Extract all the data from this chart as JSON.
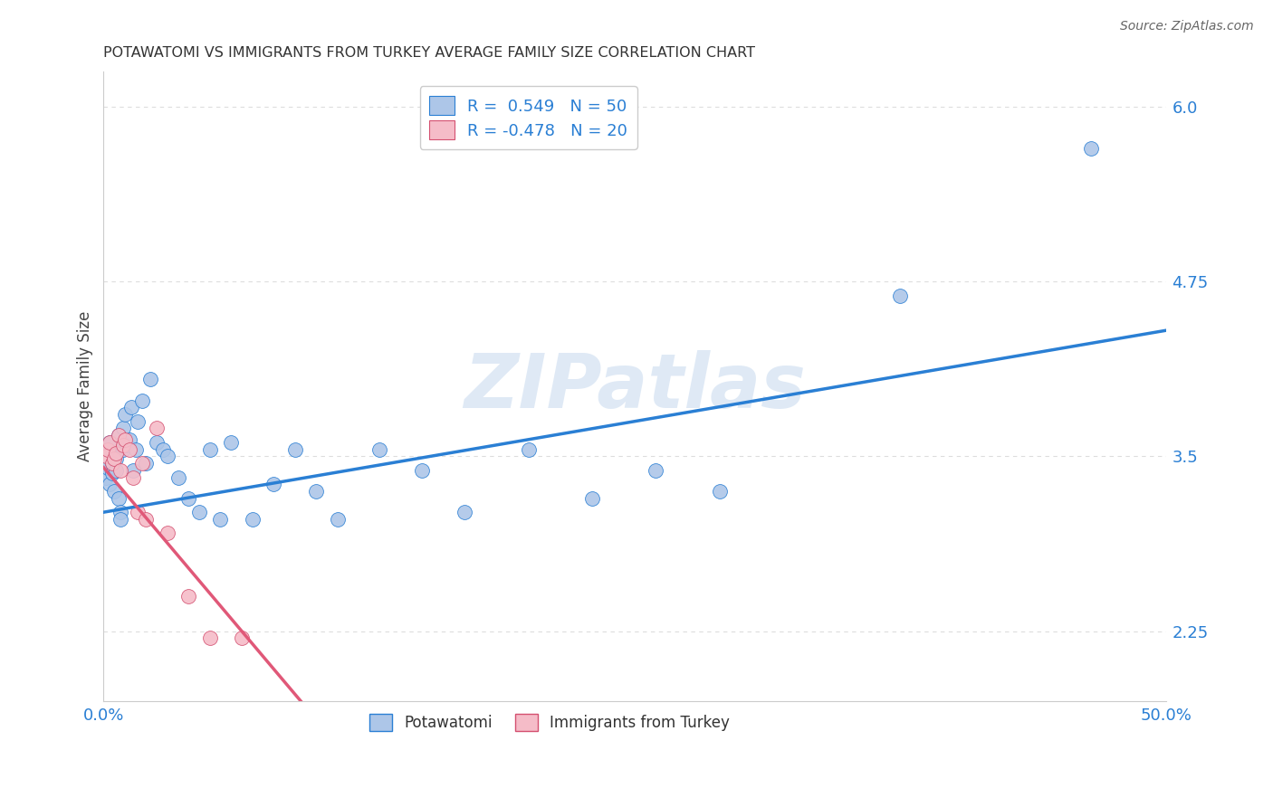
{
  "title": "POTAWATOMI VS IMMIGRANTS FROM TURKEY AVERAGE FAMILY SIZE CORRELATION CHART",
  "source": "Source: ZipAtlas.com",
  "ylabel": "Average Family Size",
  "xlim": [
    0.0,
    0.5
  ],
  "ylim": [
    1.75,
    6.25
  ],
  "yticks": [
    2.25,
    3.5,
    4.75,
    6.0
  ],
  "xtick_positions": [
    0.0,
    0.1,
    0.2,
    0.3,
    0.4,
    0.5
  ],
  "xtick_labels": [
    "0.0%",
    "",
    "",
    "",
    "",
    "50.0%"
  ],
  "legend1_label": "R =  0.549   N = 50",
  "legend2_label": "R = -0.478   N = 20",
  "blue_fill": "#adc6e8",
  "blue_edge": "#2a7fd4",
  "pink_fill": "#f5bcc8",
  "pink_edge": "#d45070",
  "blue_line": "#2a7fd4",
  "pink_line": "#e05878",
  "legend_text_color": "#2a7fd4",
  "title_color": "#333333",
  "grid_color": "#dddddd",
  "watermark": "ZIPatlas",
  "blue_x": [
    0.001,
    0.002,
    0.002,
    0.003,
    0.003,
    0.004,
    0.004,
    0.005,
    0.005,
    0.006,
    0.006,
    0.007,
    0.007,
    0.008,
    0.008,
    0.009,
    0.009,
    0.01,
    0.011,
    0.012,
    0.013,
    0.014,
    0.015,
    0.016,
    0.018,
    0.02,
    0.022,
    0.025,
    0.028,
    0.03,
    0.035,
    0.04,
    0.045,
    0.05,
    0.055,
    0.06,
    0.07,
    0.08,
    0.09,
    0.1,
    0.11,
    0.13,
    0.15,
    0.17,
    0.2,
    0.23,
    0.26,
    0.29,
    0.375,
    0.465
  ],
  "blue_y": [
    3.35,
    3.55,
    3.42,
    3.3,
    3.6,
    3.45,
    3.38,
    3.25,
    3.5,
    3.4,
    3.48,
    3.2,
    3.65,
    3.1,
    3.05,
    3.7,
    3.55,
    3.8,
    3.58,
    3.62,
    3.85,
    3.4,
    3.55,
    3.75,
    3.9,
    3.45,
    4.05,
    3.6,
    3.55,
    3.5,
    3.35,
    3.2,
    3.1,
    3.55,
    3.05,
    3.6,
    3.05,
    3.3,
    3.55,
    3.25,
    3.05,
    3.55,
    3.4,
    3.1,
    3.55,
    3.2,
    3.4,
    3.25,
    4.65,
    5.7
  ],
  "pink_x": [
    0.001,
    0.002,
    0.003,
    0.004,
    0.005,
    0.006,
    0.007,
    0.008,
    0.009,
    0.01,
    0.012,
    0.014,
    0.016,
    0.018,
    0.02,
    0.025,
    0.03,
    0.04,
    0.05,
    0.065
  ],
  "pink_y": [
    3.5,
    3.55,
    3.6,
    3.45,
    3.48,
    3.52,
    3.65,
    3.4,
    3.58,
    3.62,
    3.55,
    3.35,
    3.1,
    3.45,
    3.05,
    3.7,
    2.95,
    2.5,
    2.2,
    2.2
  ]
}
